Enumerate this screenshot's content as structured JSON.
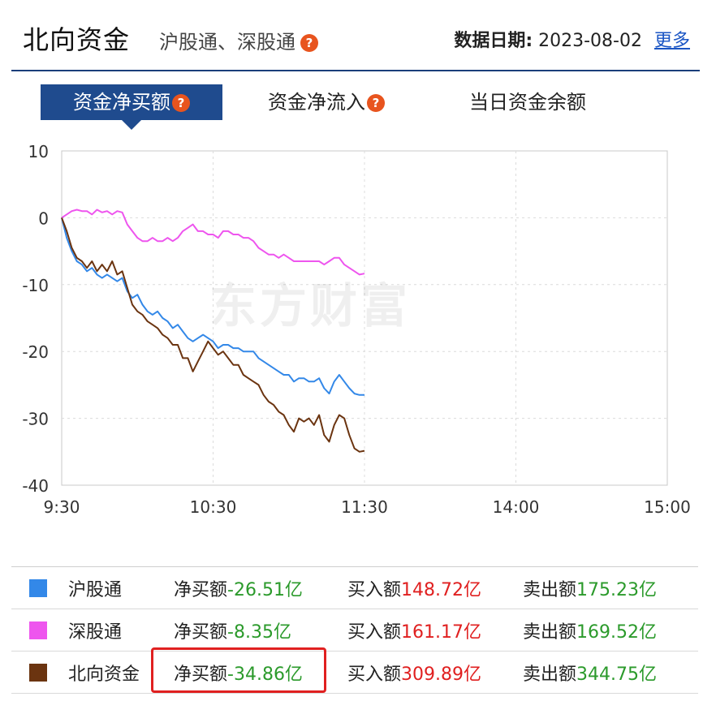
{
  "header": {
    "title": "北向资金",
    "subtitle": "沪股通、深股通",
    "help_glyph": "?",
    "date_label": "数据日期:",
    "date_value": "2023-08-02",
    "more_link": "更多"
  },
  "tabs": [
    {
      "label": "资金净买额",
      "active": true,
      "has_help": true
    },
    {
      "label": "资金净流入",
      "active": false,
      "has_help": true
    },
    {
      "label": "当日资金余额",
      "active": false,
      "has_help": false
    }
  ],
  "watermark": "东方财富",
  "colors": {
    "accent": "#1f4b8e",
    "help": "#e8541e",
    "negative": "#2b9a2b",
    "positive": "#e02020",
    "hgt": "#3388e8",
    "sgt": "#ee55ee",
    "north": "#6b3410"
  },
  "chart_data": {
    "type": "line",
    "xlabel": "",
    "ylabel": "",
    "x_ticks": [
      "9:30",
      "10:30",
      "11:30",
      "14:00",
      "15:00"
    ],
    "ylim": [
      -40,
      10
    ],
    "y_ticks": [
      10,
      0,
      -10,
      -20,
      -30,
      -40
    ],
    "grid": true,
    "x_unit": "minutes since open",
    "series": [
      {
        "name": "沪股通",
        "color": "#3388e8",
        "x": [
          0,
          2,
          4,
          6,
          8,
          10,
          12,
          14,
          16,
          18,
          20,
          22,
          24,
          26,
          28,
          30,
          32,
          34,
          36,
          38,
          40,
          42,
          44,
          46,
          48,
          50,
          52,
          54,
          56,
          58,
          60,
          62,
          64,
          66,
          68,
          70,
          72,
          74,
          76,
          78,
          80,
          82,
          84,
          86,
          88,
          90,
          92,
          94,
          96,
          98,
          100,
          102,
          104,
          106,
          108,
          110,
          112,
          114,
          116,
          118,
          120
        ],
        "y": [
          0,
          -3,
          -5,
          -6.5,
          -7,
          -8,
          -7.5,
          -8.5,
          -9,
          -8.5,
          -9,
          -9.5,
          -9,
          -11,
          -12,
          -11.5,
          -13,
          -14,
          -14.5,
          -14,
          -15,
          -15.5,
          -16.5,
          -16,
          -17,
          -18,
          -18.5,
          -18,
          -17.5,
          -18,
          -18.5,
          -19.5,
          -19,
          -19,
          -19.5,
          -19.5,
          -20,
          -20,
          -20,
          -21,
          -21.5,
          -22,
          -22.5,
          -23,
          -23.5,
          -23.5,
          -24.5,
          -24,
          -24,
          -24.5,
          -24.5,
          -24,
          -25.5,
          -26.3,
          -24.5,
          -23.5,
          -24.5,
          -25.5,
          -26.3,
          -26.5,
          -26.51
        ]
      },
      {
        "name": "深股通",
        "color": "#ee55ee",
        "x": [
          0,
          2,
          4,
          6,
          8,
          10,
          12,
          14,
          16,
          18,
          20,
          22,
          24,
          26,
          28,
          30,
          32,
          34,
          36,
          38,
          40,
          42,
          44,
          46,
          48,
          50,
          52,
          54,
          56,
          58,
          60,
          62,
          64,
          66,
          68,
          70,
          72,
          74,
          76,
          78,
          80,
          82,
          84,
          86,
          88,
          90,
          92,
          94,
          96,
          98,
          100,
          102,
          104,
          106,
          108,
          110,
          112,
          114,
          116,
          118,
          120
        ],
        "y": [
          0,
          0.5,
          1,
          1.2,
          1,
          1,
          0.5,
          1.2,
          0.8,
          1,
          0.5,
          1,
          0.8,
          -1,
          -2,
          -3,
          -3.5,
          -3.5,
          -3,
          -3.5,
          -3.5,
          -3,
          -3.5,
          -3,
          -2,
          -1.5,
          -1,
          -2,
          -2,
          -2.5,
          -2.5,
          -3,
          -2,
          -2,
          -2.5,
          -2.5,
          -3,
          -3,
          -3.5,
          -4.5,
          -5,
          -5.5,
          -5.5,
          -6,
          -5.5,
          -6,
          -6.5,
          -6.5,
          -6.5,
          -6.5,
          -6.5,
          -6.5,
          -7,
          -6.5,
          -6,
          -6,
          -7,
          -7.5,
          -8,
          -8.5,
          -8.35
        ]
      },
      {
        "name": "北向资金",
        "color": "#6b3410",
        "x": [
          0,
          2,
          4,
          6,
          8,
          10,
          12,
          14,
          16,
          18,
          20,
          22,
          24,
          26,
          28,
          30,
          32,
          34,
          36,
          38,
          40,
          42,
          44,
          46,
          48,
          50,
          52,
          54,
          56,
          58,
          60,
          62,
          64,
          66,
          68,
          70,
          72,
          74,
          76,
          78,
          80,
          82,
          84,
          86,
          88,
          90,
          92,
          94,
          96,
          98,
          100,
          102,
          104,
          106,
          108,
          110,
          112,
          114,
          116,
          118,
          120
        ],
        "y": [
          0,
          -2,
          -4.5,
          -6,
          -6.5,
          -7.5,
          -6.5,
          -8,
          -7,
          -8,
          -6.5,
          -8.5,
          -8,
          -10.5,
          -13,
          -14,
          -14.5,
          -15.5,
          -16,
          -16.5,
          -17.5,
          -18,
          -19,
          -19,
          -21,
          -21,
          -23,
          -21.5,
          -20,
          -18.5,
          -19.5,
          -20.5,
          -20,
          -21,
          -22,
          -22,
          -23.5,
          -24,
          -24.5,
          -25,
          -26.5,
          -27.5,
          -28,
          -29,
          -29.5,
          -31,
          -32,
          -30,
          -30.5,
          -30,
          -31,
          -29.5,
          -32.5,
          -33.5,
          -31,
          -29.5,
          -30,
          -32.5,
          -34.5,
          -35,
          -34.86
        ]
      }
    ]
  },
  "legend": [
    {
      "name": "沪股通",
      "color": "#3388e8",
      "net_label": "净买额",
      "net_value": "-26.51亿",
      "buy_label": "买入额",
      "buy_value": "148.72亿",
      "sell_label": "卖出额",
      "sell_value": "175.23亿"
    },
    {
      "name": "深股通",
      "color": "#ee55ee",
      "net_label": "净买额",
      "net_value": "-8.35亿",
      "buy_label": "买入额",
      "buy_value": "161.17亿",
      "sell_label": "卖出额",
      "sell_value": "169.52亿"
    },
    {
      "name": "北向资金",
      "color": "#6b3410",
      "net_label": "净买额",
      "net_value": "-34.86亿",
      "buy_label": "买入额",
      "buy_value": "309.89亿",
      "sell_label": "卖出额",
      "sell_value": "344.75亿"
    }
  ]
}
